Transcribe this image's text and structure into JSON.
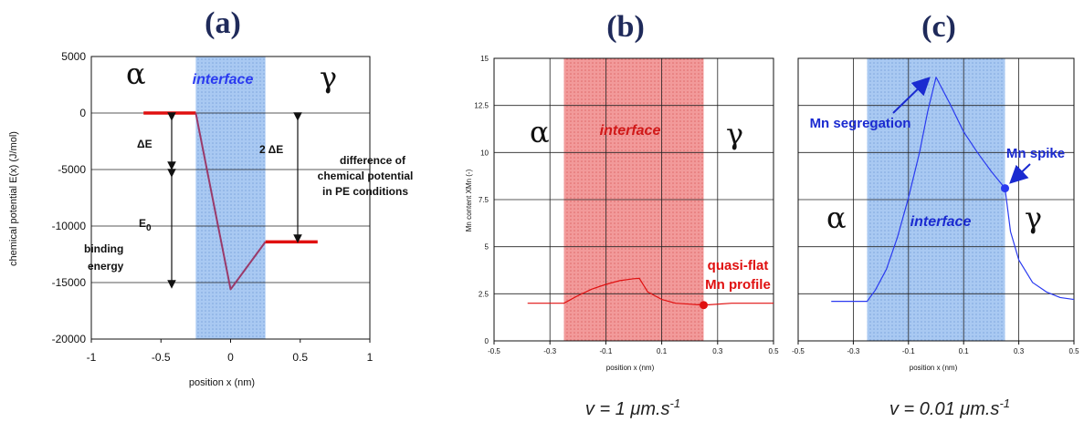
{
  "panels": {
    "a": {
      "label": "(a)",
      "alpha": "α",
      "gamma": "γ",
      "interface": "interface",
      "delta_e": "ΔE",
      "two_delta_e": "2 ΔE",
      "e0": "E",
      "e0_sub": "0",
      "binding_1": "binding",
      "binding_2": "energy",
      "diff_1": "difference of",
      "diff_2": "chemical potential",
      "diff_3": "in PE conditions"
    },
    "b": {
      "label": "(b)",
      "alpha": "α",
      "gamma": "γ",
      "interface": "interface",
      "quasi_1": "quasi-flat",
      "quasi_2": "Mn profile",
      "caption": "v = 1 μm.s-1"
    },
    "c": {
      "label": "(c)",
      "alpha": "α",
      "gamma": "γ",
      "interface": "interface",
      "seg": "Mn segregation",
      "spike": "Mn spike",
      "caption": "v = 0.01 μm.s-1"
    }
  },
  "colors": {
    "interface_blue": "#9fc3f0",
    "interface_red": "#f08a8a",
    "line_red": "#e01010",
    "line_purple": "#9a3a6a",
    "line_blue": "#2a3af0",
    "text_blue": "#1a2ad0"
  },
  "chart_data": [
    {
      "type": "line",
      "panel": "a",
      "xlabel": "position x (nm)",
      "ylabel": "chemical potential E(x) (J/mol)",
      "xlim": [
        -1,
        1
      ],
      "ylim": [
        -20000,
        5000
      ],
      "x_ticks": [
        "-1",
        "-0.5",
        "0",
        "0.5",
        "1"
      ],
      "y_ticks": [
        "5000",
        "0",
        "-5000",
        "-10000",
        "-15000",
        "-20000"
      ],
      "interface_range": [
        -0.25,
        0.25
      ],
      "series": [
        {
          "x": [
            -0.625,
            -0.25
          ],
          "y": [
            0,
            0
          ]
        },
        {
          "x": [
            -0.25,
            0,
            0.25
          ],
          "y": [
            0,
            -15600,
            -11400
          ]
        },
        {
          "x": [
            0.25,
            0.625
          ],
          "y": [
            -11400,
            -11400
          ]
        }
      ]
    },
    {
      "type": "line",
      "panel": "b",
      "xlabel": "position x (nm)",
      "ylabel": "Mn content XMn (-)",
      "xlim": [
        -0.5,
        0.5
      ],
      "ylim": [
        0,
        15
      ],
      "x_ticks": [
        "-0.5",
        "-0.3",
        "-0.1",
        "0.1",
        "0.3",
        "0.5"
      ],
      "y_ticks": [
        "15",
        "12.5",
        "10",
        "7.5",
        "5",
        "2.5",
        "0"
      ],
      "interface_range": [
        -0.25,
        0.25
      ],
      "marker": {
        "x": 0.25,
        "y": 1.9
      },
      "series": [
        {
          "x": [
            -0.38,
            -0.25,
            -0.2,
            -0.15,
            -0.1,
            -0.05,
            0.0,
            0.02,
            0.05,
            0.1,
            0.15,
            0.2,
            0.25,
            0.35,
            0.5
          ],
          "y": [
            2.0,
            2.0,
            2.4,
            2.75,
            3.0,
            3.2,
            3.3,
            3.32,
            2.6,
            2.2,
            2.0,
            1.95,
            1.9,
            2.0,
            2.0
          ]
        }
      ]
    },
    {
      "type": "line",
      "panel": "c",
      "xlabel": "position x (nm)",
      "xlim": [
        -0.5,
        0.5
      ],
      "ylim": [
        0,
        15
      ],
      "x_ticks": [
        "-0.5",
        "-0.3",
        "-0.1",
        "0.1",
        "0.3",
        "0.5"
      ],
      "interface_range": [
        -0.25,
        0.25
      ],
      "marker": {
        "x": 0.25,
        "y": 8.1
      },
      "series": [
        {
          "x": [
            -0.38,
            -0.25,
            -0.22,
            -0.18,
            -0.14,
            -0.1,
            -0.06,
            -0.03,
            0.0,
            0.05,
            0.1,
            0.15,
            0.2,
            0.25,
            0.27,
            0.3,
            0.35,
            0.4,
            0.45,
            0.5
          ],
          "y": [
            2.1,
            2.1,
            2.7,
            3.8,
            5.5,
            7.6,
            10.0,
            12.2,
            14.0,
            12.6,
            11.1,
            10.0,
            9.0,
            8.1,
            5.8,
            4.3,
            3.1,
            2.6,
            2.3,
            2.2
          ]
        }
      ]
    }
  ]
}
